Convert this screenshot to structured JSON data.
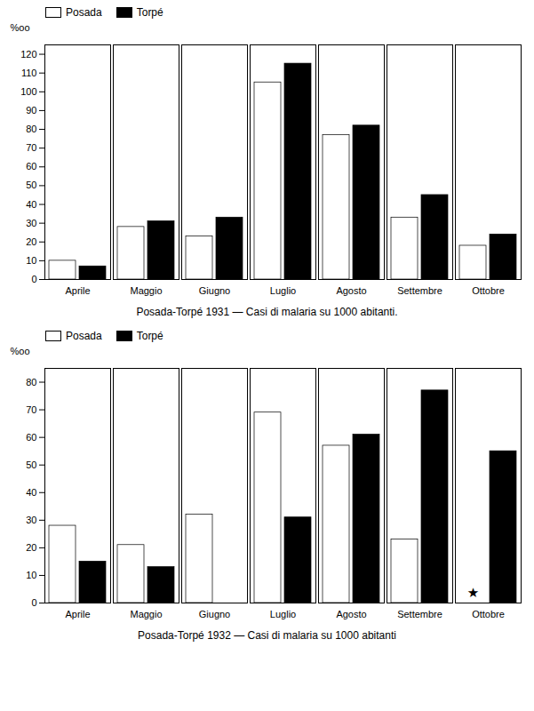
{
  "chart_data": [
    {
      "type": "bar",
      "title": "Posada-Torpé 1931 — Casi di malaria su 1000 abitanti.",
      "ylabel": "%oo",
      "categories": [
        "Aprile",
        "Maggio",
        "Giugno",
        "Luglio",
        "Agosto",
        "Settembre",
        "Ottobre"
      ],
      "series": [
        {
          "name": "Posada",
          "color": "white",
          "values": [
            10,
            28,
            23,
            105,
            77,
            33,
            18
          ]
        },
        {
          "name": "Torpé",
          "color": "black",
          "values": [
            7,
            31,
            33,
            115,
            82,
            45,
            24
          ]
        }
      ],
      "ylim": [
        0,
        125
      ],
      "yticks": [
        0,
        10,
        20,
        30,
        40,
        50,
        60,
        70,
        80,
        90,
        100,
        110,
        120
      ],
      "grid": false,
      "legend": "upper left"
    },
    {
      "type": "bar",
      "title": "Posada-Torpé 1932 — Casi di malaria su 1000 abitanti",
      "ylabel": "%oo",
      "categories": [
        "Aprile",
        "Maggio",
        "Giugno",
        "Luglio",
        "Agosto",
        "Settembre",
        "Ottobre"
      ],
      "series": [
        {
          "name": "Posada",
          "color": "white",
          "values": [
            28,
            21,
            32,
            69,
            57,
            23,
            0
          ]
        },
        {
          "name": "Torpé",
          "color": "black",
          "values": [
            15,
            13,
            0,
            31,
            61,
            77,
            55
          ]
        }
      ],
      "ylim": [
        0,
        85
      ],
      "yticks": [
        0,
        10,
        20,
        30,
        40,
        50,
        60,
        70,
        80
      ],
      "grid": false,
      "legend": "upper left",
      "annotations": [
        {
          "text": "★",
          "x": "Ottobre",
          "series": "Posada",
          "y": 2
        }
      ]
    }
  ]
}
